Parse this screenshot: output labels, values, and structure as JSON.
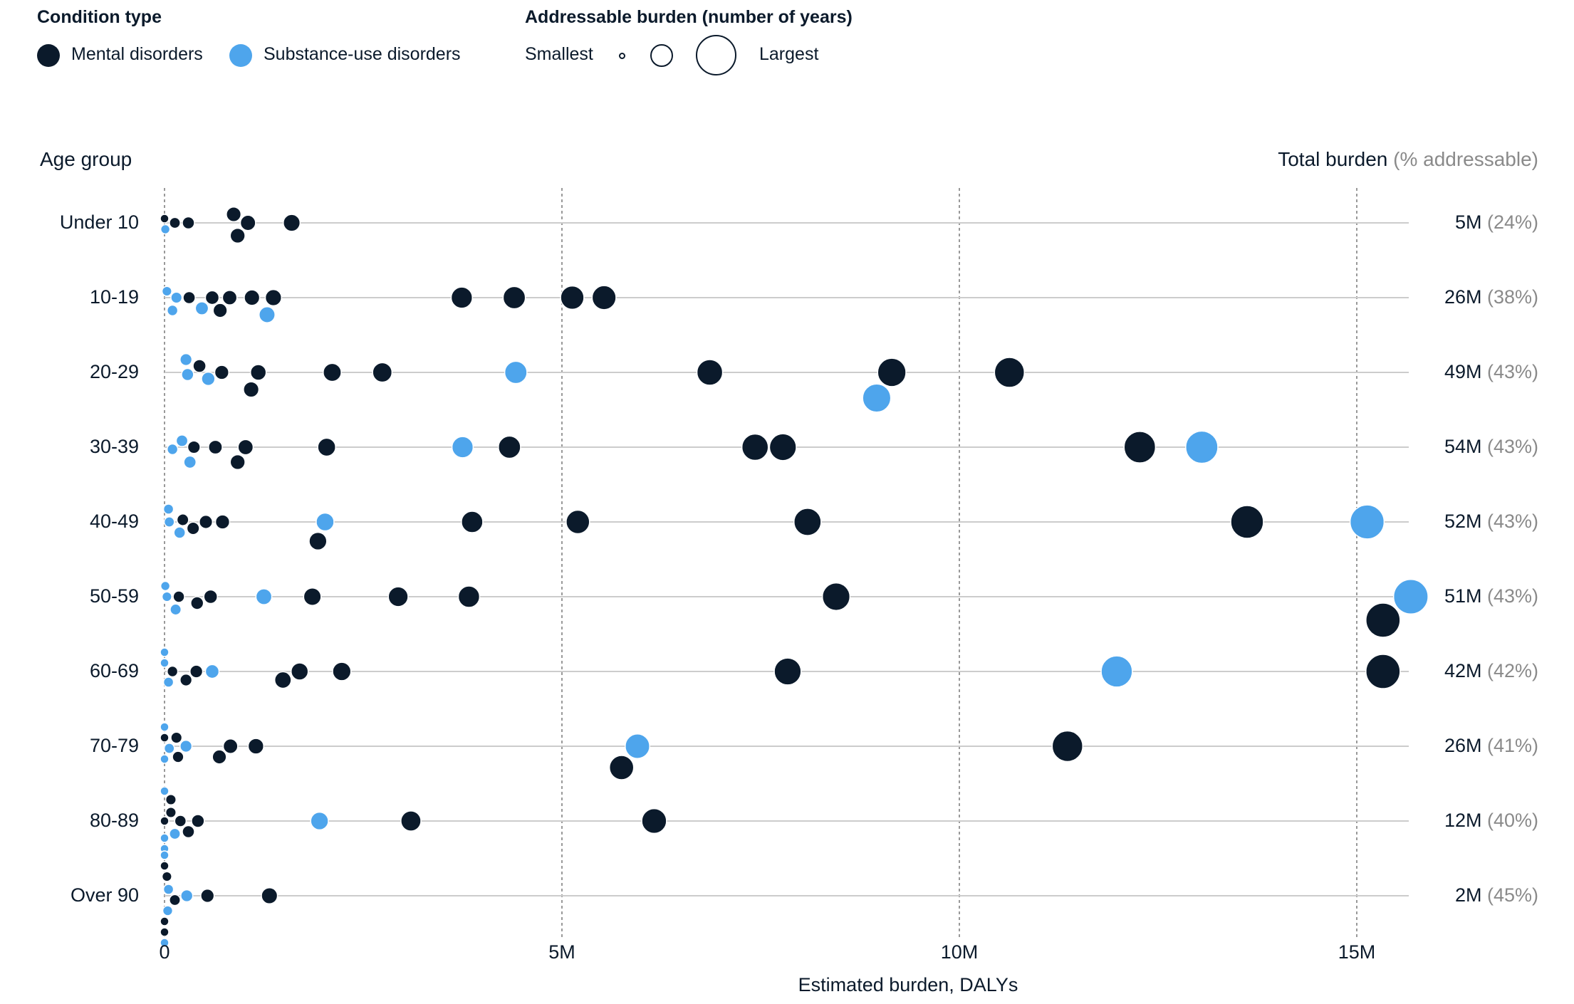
{
  "legend": {
    "condition_title": "Condition type",
    "mental_label": "Mental disorders",
    "substance_label": "Substance-use disorders",
    "size_title": "Addressable burden (number of years)",
    "smallest_label": "Smallest",
    "largest_label": "Largest"
  },
  "colors": {
    "mental": "#0b1a2b",
    "substance": "#4ea5ec",
    "grid": "#cccccc"
  },
  "chart_data": {
    "type": "scatter",
    "subtype": "beeswarm bubble",
    "ylabel": "Age group",
    "xlabel": "Estimated burden, DALYs",
    "right_header": "Total burden",
    "right_header_sub": "(% addressable)",
    "xlim": [
      0,
      15.7
    ],
    "x_unit": "M",
    "xticks": [
      {
        "value": 0,
        "label": "0"
      },
      {
        "value": 5,
        "label": "5M"
      },
      {
        "value": 10,
        "label": "10M"
      },
      {
        "value": 15,
        "label": "15M"
      }
    ],
    "grid": "vertical dashed at ticks, horizontal line per row",
    "rows": [
      {
        "label": "Under 10",
        "total": "5M",
        "pct": "(24%)",
        "mental": [
          0.0,
          0.13,
          0.3,
          0.87,
          0.92,
          1.05,
          1.6
        ],
        "substance": [
          0.01
        ]
      },
      {
        "label": "10-19",
        "total": "26M",
        "pct": "(38%)",
        "mental": [
          0.31,
          0.6,
          0.7,
          0.82,
          1.1,
          1.37,
          3.74,
          4.4,
          5.13,
          5.53
        ],
        "substance": [
          0.03,
          0.1,
          0.15,
          0.47,
          1.29
        ]
      },
      {
        "label": "20-29",
        "total": "49M",
        "pct": "(43%)",
        "mental": [
          0.44,
          0.72,
          1.09,
          1.18,
          2.11,
          2.74,
          6.86,
          9.15,
          10.63
        ],
        "substance": [
          0.27,
          0.29,
          0.55,
          4.42,
          8.96
        ]
      },
      {
        "label": "30-39",
        "total": "54M",
        "pct": "(43%)",
        "mental": [
          0.37,
          0.64,
          0.92,
          1.02,
          2.04,
          4.34,
          7.43,
          7.78,
          12.27
        ],
        "substance": [
          0.1,
          0.22,
          0.32,
          3.75,
          13.05
        ]
      },
      {
        "label": "40-49",
        "total": "52M",
        "pct": "(43%)",
        "mental": [
          0.23,
          0.36,
          0.52,
          0.73,
          1.93,
          3.87,
          5.2,
          8.09,
          13.62
        ],
        "substance": [
          0.05,
          0.06,
          0.19,
          2.02,
          15.13
        ]
      },
      {
        "label": "50-59",
        "total": "51M",
        "pct": "(43%)",
        "mental": [
          0.18,
          0.41,
          0.58,
          1.86,
          2.94,
          3.83,
          8.45,
          15.33
        ],
        "substance": [
          0.01,
          0.03,
          0.14,
          1.25,
          15.68
        ]
      },
      {
        "label": "60-69",
        "total": "42M",
        "pct": "(42%)",
        "mental": [
          0.1,
          0.27,
          0.4,
          1.49,
          1.7,
          2.23,
          7.84,
          15.33
        ],
        "substance": [
          0.0,
          0.0,
          0.05,
          0.6,
          11.98
        ]
      },
      {
        "label": "70-79",
        "total": "26M",
        "pct": "(41%)",
        "mental": [
          0.0,
          0.15,
          0.17,
          0.69,
          0.83,
          1.15,
          5.75,
          11.36
        ],
        "substance": [
          0.0,
          0.0,
          0.06,
          0.27,
          5.95
        ]
      },
      {
        "label": "80-89",
        "total": "12M",
        "pct": "(40%)",
        "mental": [
          0.0,
          0.08,
          0.08,
          0.2,
          0.3,
          0.42,
          3.1,
          6.16
        ],
        "substance": [
          0.0,
          0.0,
          0.0,
          0.13,
          1.95
        ]
      },
      {
        "label": "Over 90",
        "total": "2M",
        "pct": "(45%)",
        "mental": [
          0.0,
          0.0,
          0.0,
          0.03,
          0.13,
          0.54,
          1.32
        ],
        "substance": [
          0.0,
          0.0,
          0.04,
          0.05,
          0.28
        ]
      }
    ]
  }
}
